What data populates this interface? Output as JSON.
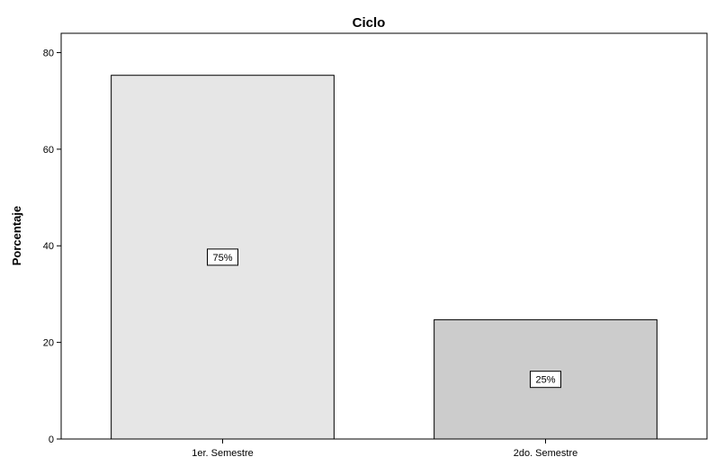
{
  "chart_data": {
    "type": "bar",
    "title": "Ciclo",
    "xlabel": "",
    "ylabel": "Porcentaje",
    "categories": [
      "1er. Semestre",
      "2do. Semestre"
    ],
    "values": [
      75.3,
      24.7
    ],
    "data_labels": [
      "75%",
      "25%"
    ],
    "bar_colors": [
      "#e6e6e6",
      "#cccccc"
    ],
    "ylim": [
      0,
      84
    ],
    "yticks": [
      0,
      20,
      40,
      60,
      80
    ],
    "grid": false,
    "legend": "none"
  }
}
